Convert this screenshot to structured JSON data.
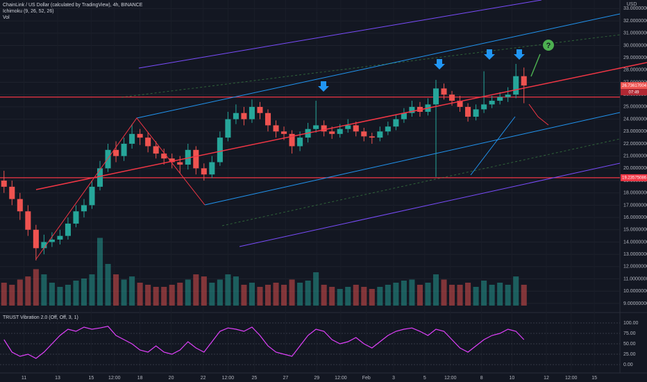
{
  "chart_data": [
    {
      "type": "candlestick",
      "title": "ChainLink / US Dollar (calculated by TradingView), 4h, BINANCE",
      "indicators": [
        "Ichimoku (9, 26, 52, 26)",
        "Vol"
      ],
      "currency": "USD",
      "up_color": "#26a69a",
      "down_color": "#ef5350",
      "x": [
        0,
        1,
        2,
        3,
        4,
        5,
        6,
        7,
        8,
        9,
        10,
        11,
        12,
        13,
        14,
        15,
        16,
        17,
        18,
        19,
        20,
        21,
        22,
        23,
        24,
        25,
        26,
        27,
        28,
        29,
        30,
        31,
        32,
        33,
        34,
        35,
        36,
        37,
        38,
        39,
        40,
        41,
        42,
        43,
        44,
        45,
        46,
        47,
        48,
        49,
        50,
        51,
        52,
        53,
        54,
        55,
        56,
        57,
        58,
        59,
        60,
        61,
        62,
        63,
        64,
        65
      ],
      "open": [
        19,
        18.5,
        17.5,
        16.5,
        15,
        13.5,
        14,
        14.2,
        14.5,
        15.5,
        16.5,
        17,
        18.5,
        20,
        21.5,
        21,
        22,
        22.8,
        22.5,
        21.8,
        21.2,
        20.8,
        20.5,
        20.3,
        21.5,
        20,
        19.5,
        20.5,
        22.5,
        24,
        24.5,
        24,
        25,
        24.5,
        23.5,
        23,
        22.8,
        21.8,
        22.5,
        23.2,
        23.5,
        23,
        22.8,
        23.2,
        23.5,
        23,
        22.6,
        22.5,
        23,
        23.4,
        24,
        24.5,
        25,
        24.6,
        25.2,
        26.5,
        26,
        25.5,
        25,
        24.2,
        24.8,
        25.2,
        25.5,
        25.8,
        26,
        27.5
      ],
      "high": [
        19.8,
        19,
        18,
        17,
        15.4,
        14.6,
        14.8,
        15,
        16,
        17,
        17.5,
        19,
        20.6,
        22,
        22.2,
        22.5,
        23.6,
        23.2,
        22.9,
        22.2,
        21.6,
        21.2,
        21,
        22,
        21.8,
        20.4,
        21,
        23,
        24.6,
        25.2,
        25,
        25.6,
        25.4,
        24.8,
        23.9,
        23.4,
        23.1,
        23,
        23.7,
        25.5,
        23.9,
        23.4,
        23.6,
        24,
        23.8,
        23.3,
        22.9,
        23.4,
        23.8,
        24.4,
        24.9,
        25.5,
        25.4,
        25.7,
        27.2,
        26.9,
        26.3,
        25.9,
        25.3,
        25.2,
        27.9,
        25.9,
        26.2,
        26.6,
        28.5,
        28.2
      ],
      "low": [
        18,
        17,
        15.8,
        14.5,
        12.5,
        13,
        13.6,
        13.8,
        14.2,
        15.2,
        16,
        16.7,
        18.2,
        19.7,
        20.5,
        20.6,
        21.6,
        21.9,
        21.3,
        20.8,
        20.3,
        20,
        19.6,
        19.9,
        19.5,
        19,
        19.2,
        20.2,
        22.2,
        23.6,
        23.5,
        23.7,
        24,
        23,
        22.5,
        22.3,
        21.2,
        21.4,
        22.1,
        22.9,
        22.6,
        22.4,
        22.5,
        22.9,
        22.6,
        22.2,
        22,
        22.2,
        22.7,
        23.1,
        23.7,
        24.2,
        24.2,
        24.3,
        19.3,
        25.6,
        25.1,
        24.6,
        23.8,
        23.9,
        24.5,
        24.9,
        25.2,
        25.4,
        25.7,
        25.3
      ],
      "close": [
        18.5,
        17.5,
        16.5,
        15,
        13.5,
        14,
        14.2,
        14.5,
        15.5,
        16.5,
        17,
        18.5,
        20,
        21.5,
        21,
        22,
        22.8,
        22.5,
        21.8,
        21.2,
        20.8,
        20.5,
        20.3,
        21.5,
        20,
        19.5,
        20.5,
        22.5,
        24,
        24.5,
        24,
        25,
        24.5,
        23.5,
        23,
        22.8,
        21.8,
        22.5,
        23.2,
        23.5,
        23,
        22.8,
        23.2,
        23.5,
        23,
        22.6,
        22.5,
        23,
        23.4,
        24,
        24.5,
        25,
        24.6,
        25.2,
        26.5,
        26,
        25.5,
        25,
        24.2,
        24.8,
        25.2,
        25.5,
        25.8,
        26,
        27.5,
        26.74
      ],
      "xlim": [
        -0.5,
        77
      ],
      "xticks": [
        {
          "value": 2.5,
          "label": "11"
        },
        {
          "value": 6.7,
          "label": "13"
        },
        {
          "value": 10.9,
          "label": "15"
        },
        {
          "value": 13.8,
          "label": "12:00"
        },
        {
          "value": 17,
          "label": "18"
        },
        {
          "value": 20.9,
          "label": "20"
        },
        {
          "value": 24.9,
          "label": "22"
        },
        {
          "value": 28,
          "label": "12:00"
        },
        {
          "value": 31.3,
          "label": "25"
        },
        {
          "value": 35.2,
          "label": "27"
        },
        {
          "value": 39.1,
          "label": "29"
        },
        {
          "value": 42.1,
          "label": "12:00"
        },
        {
          "value": 45.3,
          "label": "Feb"
        },
        {
          "value": 48.7,
          "label": "3"
        },
        {
          "value": 52.6,
          "label": "5"
        },
        {
          "value": 55.8,
          "label": "12:00"
        },
        {
          "value": 59.7,
          "label": "8"
        },
        {
          "value": 63.5,
          "label": "10"
        },
        {
          "value": 67.8,
          "label": "12"
        },
        {
          "value": 70.9,
          "label": "12:00"
        },
        {
          "value": 73.8,
          "label": "15"
        }
      ],
      "ylim": [
        8.6,
        33.7
      ],
      "yticks": [
        {
          "value": 9,
          "label": "9.00000000"
        },
        {
          "value": 10,
          "label": "10.00000000"
        },
        {
          "value": 11,
          "label": "11.00000000"
        },
        {
          "value": 12,
          "label": "12.00000000"
        },
        {
          "value": 13,
          "label": "13.00000000"
        },
        {
          "value": 14,
          "label": "14.00000000"
        },
        {
          "value": 15,
          "label": "15.00000000"
        },
        {
          "value": 16,
          "label": "16.00000000"
        },
        {
          "value": 17,
          "label": "17.00000000"
        },
        {
          "value": 18,
          "label": "18.00000000"
        },
        {
          "value": 19,
          "label": "19.00000000"
        },
        {
          "value": 20,
          "label": "20.00000000"
        },
        {
          "value": 21,
          "label": "21.00000000"
        },
        {
          "value": 22,
          "label": "22.00000000"
        },
        {
          "value": 23,
          "label": "23.00000000"
        },
        {
          "value": 24,
          "label": "24.00000000"
        },
        {
          "value": 25,
          "label": "25.00000000"
        },
        {
          "value": 26,
          "label": "26.00000000"
        },
        {
          "value": 27,
          "label": "27.00000000"
        },
        {
          "value": 28,
          "label": "28.00000000"
        },
        {
          "value": 29,
          "label": "29.00000000"
        },
        {
          "value": 30,
          "label": "30.00000000"
        },
        {
          "value": 31,
          "label": "31.00000000"
        },
        {
          "value": 32,
          "label": "32.00000000"
        },
        {
          "value": 33,
          "label": "33.00000000"
        }
      ],
      "last_price": 26.73617004,
      "countdown": "07:49",
      "hlines": [
        19.23575086,
        25.8
      ],
      "hline_color": "#f23645",
      "annotation": "?"
    },
    {
      "type": "volume",
      "values": [
        22,
        20,
        25,
        28,
        35,
        30,
        22,
        18,
        20,
        24,
        26,
        30,
        65,
        40,
        30,
        25,
        28,
        22,
        20,
        18,
        18,
        20,
        22,
        25,
        30,
        28,
        22,
        25,
        30,
        28,
        20,
        22,
        18,
        20,
        22,
        20,
        25,
        22,
        24,
        32,
        20,
        18,
        16,
        18,
        20,
        18,
        16,
        18,
        20,
        22,
        24,
        25,
        20,
        22,
        30,
        25,
        20,
        20,
        22,
        18,
        24,
        20,
        22,
        20,
        28,
        20
      ]
    },
    {
      "type": "line",
      "title": "TRUST Vibration 2.0 (Off, Off, 3, 1)",
      "color": "#e040fb",
      "values": [
        60,
        30,
        20,
        25,
        15,
        30,
        50,
        70,
        85,
        80,
        90,
        85,
        88,
        92,
        70,
        60,
        50,
        35,
        30,
        45,
        30,
        25,
        35,
        55,
        40,
        30,
        55,
        80,
        88,
        85,
        80,
        90,
        70,
        45,
        30,
        25,
        20,
        45,
        70,
        85,
        80,
        60,
        50,
        55,
        65,
        50,
        40,
        55,
        70,
        80,
        85,
        88,
        80,
        70,
        85,
        80,
        60,
        40,
        30,
        45,
        60,
        70,
        75,
        85,
        80,
        60
      ],
      "ylim": [
        -16.7,
        116.7
      ],
      "yticks": [
        {
          "value": 0,
          "label": "0.00"
        },
        {
          "value": 25,
          "label": "25.00"
        },
        {
          "value": 50,
          "label": "50.00"
        },
        {
          "value": 75,
          "label": "75.00"
        },
        {
          "value": 100,
          "label": "100.00"
        }
      ]
    }
  ]
}
